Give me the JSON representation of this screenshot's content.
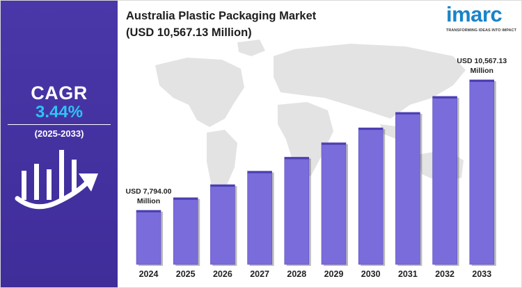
{
  "title": {
    "line1": "Australia Plastic Packaging Market",
    "line2": "(USD 10,567.13 Million)"
  },
  "brand": {
    "name": "imarc",
    "tagline": "TRANSFORMING IDEAS INTO IMPACT",
    "color": "#1a84c8"
  },
  "side_panel": {
    "cagr_label": "CAGR",
    "cagr_value": "3.44%",
    "period": "(2025-2033)",
    "icon": "growth-chart-icon",
    "bg_color": "#4a37a8",
    "accent_color": "#2ec4f3"
  },
  "chart_data": {
    "type": "bar",
    "categories": [
      "2024",
      "2025",
      "2026",
      "2027",
      "2028",
      "2029",
      "2030",
      "2031",
      "2032",
      "2033"
    ],
    "values": [
      7794.0,
      8062,
      8339,
      8626,
      8923,
      9230,
      9547,
      9875,
      10215,
      10567.13
    ],
    "bar_color": "#7a6cdb",
    "background": "world-map",
    "annotations": [
      {
        "index": 0,
        "line1": "USD 7,794.00",
        "line2": "Million"
      },
      {
        "index": 9,
        "line1": "USD 10,567.13",
        "line2": "Million"
      }
    ]
  }
}
